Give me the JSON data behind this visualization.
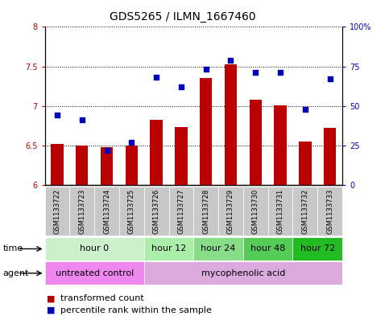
{
  "title": "GDS5265 / ILMN_1667460",
  "samples": [
    "GSM1133722",
    "GSM1133723",
    "GSM1133724",
    "GSM1133725",
    "GSM1133726",
    "GSM1133727",
    "GSM1133728",
    "GSM1133729",
    "GSM1133730",
    "GSM1133731",
    "GSM1133732",
    "GSM1133733"
  ],
  "transformed_count": [
    6.52,
    6.5,
    6.48,
    6.5,
    6.82,
    6.73,
    7.35,
    7.53,
    7.08,
    7.01,
    6.55,
    6.72
  ],
  "percentile_rank": [
    44,
    41,
    22,
    27,
    68,
    62,
    73,
    79,
    71,
    71,
    48,
    67
  ],
  "bar_color": "#bb0000",
  "dot_color": "#0000bb",
  "bar_bottom": 6.0,
  "ylim_left": [
    6.0,
    8.0
  ],
  "ylim_right": [
    0,
    100
  ],
  "yticks_left": [
    6.0,
    6.5,
    7.0,
    7.5,
    8.0
  ],
  "ytick_labels_left": [
    "6",
    "6.5",
    "7",
    "7.5",
    "8"
  ],
  "yticks_right": [
    0,
    25,
    50,
    75,
    100
  ],
  "ytick_labels_right": [
    "0",
    "25",
    "50",
    "75",
    "100%"
  ],
  "time_groups": [
    {
      "label": "hour 0",
      "start": 0,
      "end": 4,
      "color": "#ccf0cc"
    },
    {
      "label": "hour 12",
      "start": 4,
      "end": 6,
      "color": "#aaeeaa"
    },
    {
      "label": "hour 24",
      "start": 6,
      "end": 8,
      "color": "#88dd88"
    },
    {
      "label": "hour 48",
      "start": 8,
      "end": 10,
      "color": "#55cc55"
    },
    {
      "label": "hour 72",
      "start": 10,
      "end": 12,
      "color": "#22bb22"
    }
  ],
  "agent_groups": [
    {
      "label": "untreated control",
      "start": 0,
      "end": 4,
      "color": "#ee88ee"
    },
    {
      "label": "mycophenolic acid",
      "start": 4,
      "end": 12,
      "color": "#ddaadd"
    }
  ],
  "legend_bar_label": "transformed count",
  "legend_dot_label": "percentile rank within the sample",
  "sample_bg_color": "#c8c8c8",
  "plot_bg_color": "#ffffff",
  "hgrid_color": "black",
  "hgrid_style": "dotted",
  "title_fontsize": 10,
  "tick_fontsize": 7,
  "label_fontsize": 8,
  "sample_fontsize": 6,
  "time_fontsize": 8,
  "legend_fontsize": 8
}
